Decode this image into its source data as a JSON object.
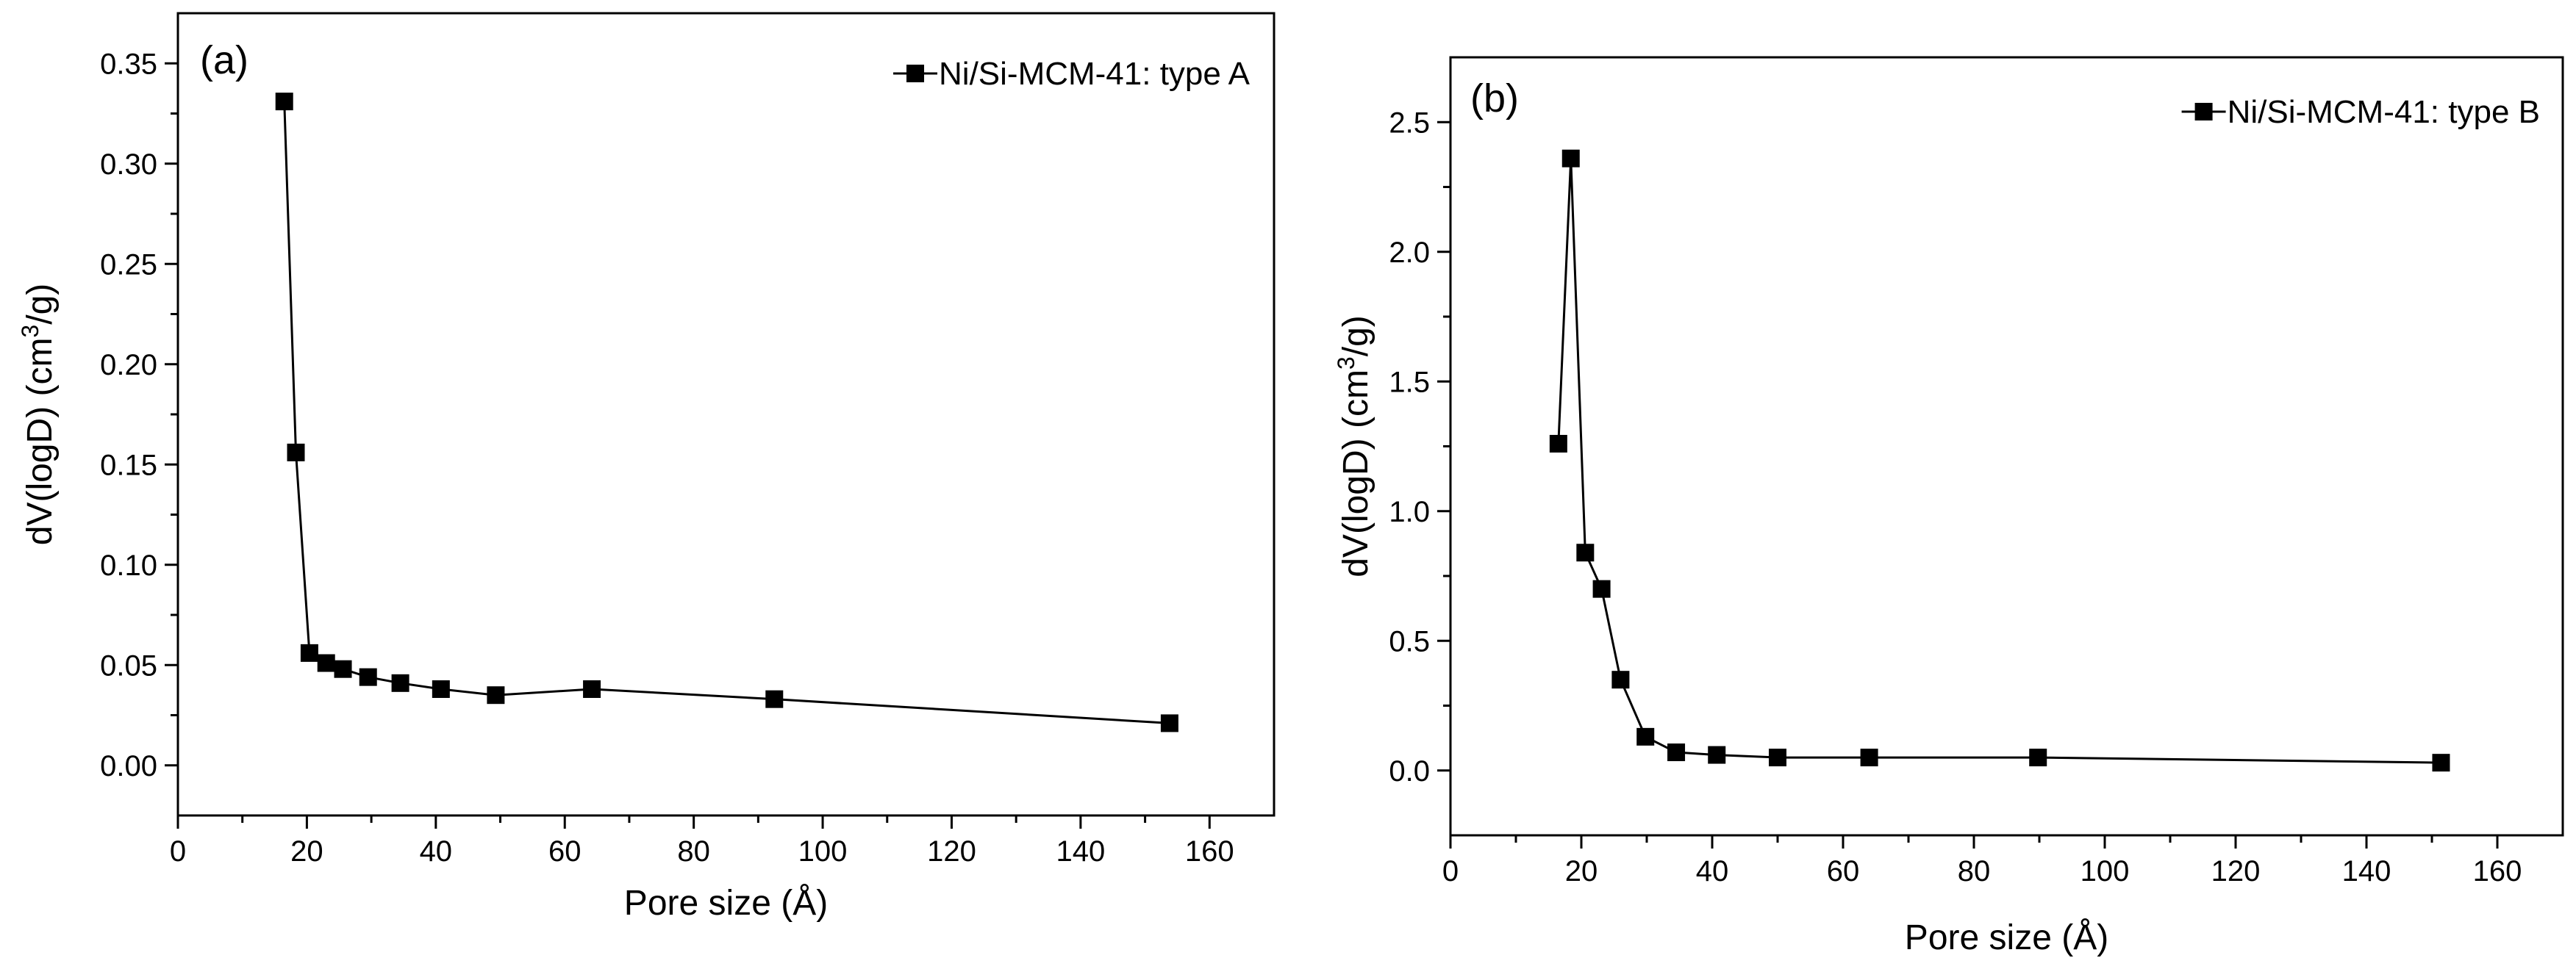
{
  "chart_data": [
    {
      "type": "line",
      "panel_label": "(a)",
      "xlabel": "Pore size (Å)",
      "ylabel_main": "dV(logD) (cm",
      "ylabel_sup": "3",
      "ylabel_tail": "/g)",
      "xlim": [
        0,
        170
      ],
      "ylim": [
        -0.025,
        0.375
      ],
      "xticks": [
        0,
        20,
        40,
        60,
        80,
        100,
        120,
        140,
        160
      ],
      "yticks": [
        0.0,
        0.05,
        0.1,
        0.15,
        0.2,
        0.25,
        0.3,
        0.35
      ],
      "ytick_labels": [
        "0.00",
        "0.05",
        "0.10",
        "0.15",
        "0.20",
        "0.25",
        "0.30",
        "0.35"
      ],
      "legend_position": "top-right",
      "series": [
        {
          "name": "Ni/Si-MCM-41: type A",
          "marker": "square",
          "x": [
            16.5,
            18.3,
            20.4,
            23.0,
            25.6,
            29.5,
            34.5,
            40.8,
            49.3,
            64.2,
            92.5,
            153.8
          ],
          "y": [
            0.331,
            0.156,
            0.056,
            0.051,
            0.048,
            0.044,
            0.041,
            0.038,
            0.035,
            0.038,
            0.033,
            0.021
          ]
        }
      ]
    },
    {
      "type": "line",
      "panel_label": "(b)",
      "xlabel": "Pore size (Å)",
      "ylabel_main": "dV(logD) (cm",
      "ylabel_sup": "3",
      "ylabel_tail": "/g)",
      "xlim": [
        0,
        170
      ],
      "ylim": [
        -0.25,
        2.75
      ],
      "xticks": [
        0,
        20,
        40,
        60,
        80,
        100,
        120,
        140,
        160
      ],
      "yticks": [
        0.0,
        0.5,
        1.0,
        1.5,
        2.0,
        2.5
      ],
      "ytick_labels": [
        "0.0",
        "0.5",
        "1.0",
        "1.5",
        "2.0",
        "2.5"
      ],
      "legend_position": "top-right",
      "series": [
        {
          "name": "Ni/Si-MCM-41: type B",
          "marker": "square",
          "x": [
            16.5,
            18.4,
            20.6,
            23.1,
            26.0,
            29.8,
            34.5,
            40.7,
            50.0,
            64.0,
            89.8,
            151.4
          ],
          "y": [
            1.26,
            2.36,
            0.84,
            0.7,
            0.35,
            0.13,
            0.07,
            0.06,
            0.05,
            0.05,
            0.05,
            0.03
          ]
        }
      ]
    }
  ]
}
